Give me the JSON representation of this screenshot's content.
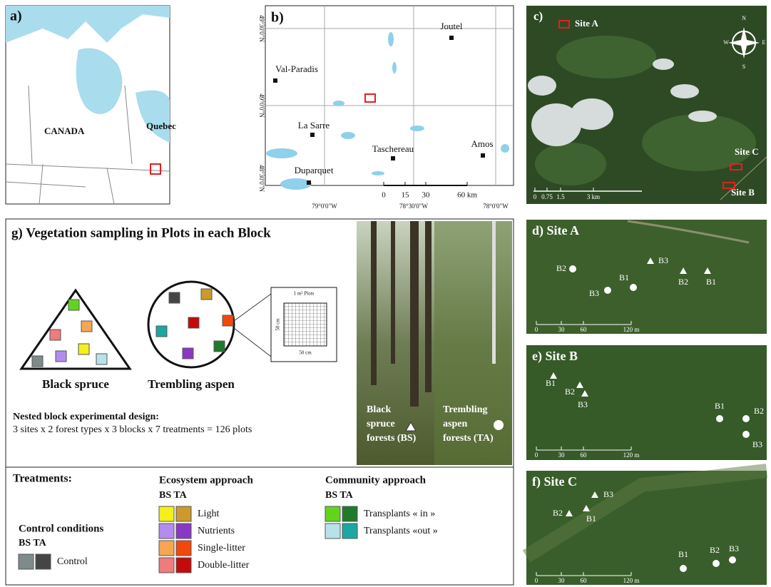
{
  "panel_a": {
    "label": "a)",
    "country": "CANADA",
    "province": "Quebec"
  },
  "panel_b": {
    "label": "b)",
    "towns": [
      "Joutel",
      "Val-Paradis",
      "La Sarre",
      "Taschereau",
      "Amos",
      "Duparquet"
    ],
    "latitudes": [
      "49°30'0\"N",
      "49°0'0\"N",
      "48°30'0\"N"
    ],
    "longitudes": [
      "79°0'0\"W",
      "78°30'0\"W",
      "78°0'0\"W"
    ],
    "scale": [
      "0",
      "15",
      "30",
      "60 km"
    ]
  },
  "panel_c": {
    "label": "c)",
    "sites": [
      "Site A",
      "Site B",
      "Site C"
    ],
    "compass": [
      "N",
      "E",
      "S",
      "W"
    ],
    "scale": [
      "0",
      "0.75",
      "1.5",
      "3 km"
    ]
  },
  "panel_g": {
    "title": "g) Vegetation sampling in Plots in each Block",
    "forest_types": [
      "Black spruce",
      "Trembling aspen"
    ],
    "plot_inset": {
      "title": "1 m² Plots",
      "height": "50 cm",
      "width": "50 cm"
    },
    "design_title": "Nested block experimental design:",
    "design_formula": "3 sites x 2 forest types x 3 blocks x 7 treatments = 126 plots",
    "photo_labels": [
      [
        "Black",
        "spruce",
        "forests (BS)"
      ],
      [
        "Trembling",
        "aspen",
        "forests (TA)"
      ]
    ],
    "treatments": {
      "title": "Treatments:",
      "control": {
        "title": "Control conditions",
        "columns": "BS TA",
        "items": [
          {
            "label": "Control",
            "colors": [
              "#7f8b8b",
              "#454545"
            ]
          }
        ]
      },
      "ecosystem": {
        "title": "Ecosystem approach",
        "columns": "BS TA",
        "items": [
          {
            "label": "Light",
            "colors": [
              "#f5ef1a",
              "#cc9a2a"
            ]
          },
          {
            "label": "Nutrients",
            "colors": [
              "#b48cf0",
              "#8a38c4"
            ]
          },
          {
            "label": "Single-litter",
            "colors": [
              "#f4a652",
              "#f2480c"
            ]
          },
          {
            "label": "Double-litter",
            "colors": [
              "#ee7c7c",
              "#c40a0a"
            ]
          }
        ]
      },
      "community": {
        "title": "Community approach",
        "columns": "BS TA",
        "items": [
          {
            "label": "Transplants « in »",
            "colors": [
              "#62d41e",
              "#207a2c"
            ]
          },
          {
            "label": "Transplants «out »",
            "colors": [
              "#b8e2ea",
              "#1ca8a2"
            ]
          }
        ]
      }
    }
  },
  "panel_d": {
    "title": "d) Site A",
    "blocks": [
      "B2",
      "B1",
      "B3",
      "B3",
      "B2",
      "B1"
    ],
    "scale": [
      "0",
      "30",
      "60",
      "120 m"
    ]
  },
  "panel_e": {
    "title": "e) Site B",
    "blocks": [
      "B1",
      "B2",
      "B3",
      "B1",
      "B2",
      "B3"
    ],
    "scale": [
      "0",
      "30",
      "60",
      "120 m"
    ]
  },
  "panel_f": {
    "title": "f) Site C",
    "blocks": [
      "B3",
      "B2",
      "B1",
      "B1",
      "B2",
      "B3"
    ],
    "scale": [
      "0",
      "30",
      "60",
      "120 m"
    ]
  }
}
